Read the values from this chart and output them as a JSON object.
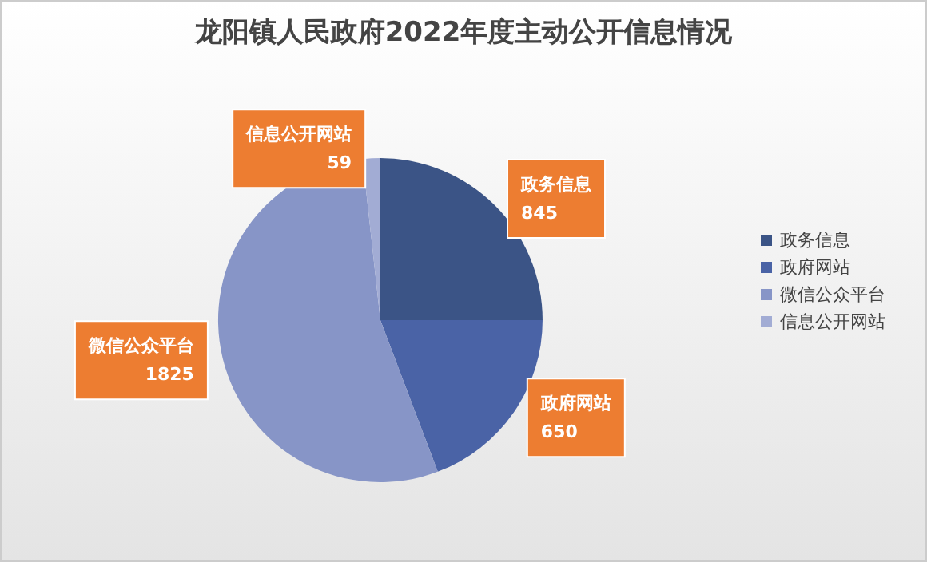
{
  "chart_data": {
    "type": "pie",
    "title": "龙阳镇人民政府2022年度主动公开信息情况",
    "categories": [
      "政务信息",
      "政府网站",
      "微信公众平台",
      "信息公开网站"
    ],
    "values": [
      845,
      650,
      1825,
      59
    ],
    "colors": [
      "#3b5486",
      "#4a63a6",
      "#8795c7",
      "#a2acd4"
    ],
    "data_labels": true,
    "legend": "right"
  }
}
